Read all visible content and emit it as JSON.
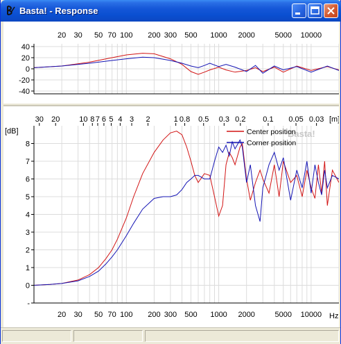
{
  "window": {
    "title": "Basta! - Response"
  },
  "top_chart": {
    "x_ticks": [
      "20",
      "30",
      "50",
      "70",
      "100",
      "200",
      "300",
      "500",
      "1000",
      "2000",
      "5000",
      "10000"
    ],
    "y_ticks": [
      "40",
      "20",
      "0",
      "-20",
      "-40"
    ],
    "ylim": [
      -45,
      45
    ]
  },
  "bottom_chart": {
    "y_unit": "[dB]",
    "x_unit": "Hz",
    "top_unit": "[m]",
    "watermark": "Basta!",
    "x_ticks": [
      "20",
      "30",
      "50",
      "70",
      "100",
      "200",
      "300",
      "500",
      "1000",
      "2000",
      "5000",
      "10000"
    ],
    "top_ticks": [
      "30",
      "20",
      "10",
      "8",
      "7",
      "6",
      "5",
      "4",
      "3",
      "2",
      "1",
      "0.8",
      "0.5",
      "0.3",
      "0.2",
      "0.1",
      "0.05",
      "0.03"
    ],
    "y_ticks": [
      "8",
      "7",
      "6",
      "5",
      "4",
      "3",
      "2",
      "1",
      "0",
      "-"
    ],
    "legend": [
      {
        "label": "Center position",
        "color": "#d21414"
      },
      {
        "label": "Corner position",
        "color": "#1414b4"
      }
    ]
  },
  "chart_data": [
    {
      "type": "line",
      "x_scale": "log",
      "xlim": [
        10,
        20000
      ],
      "ylim": [
        -45,
        45
      ],
      "series": [
        {
          "color": "#d21414",
          "x": [
            10,
            20,
            40,
            70,
            100,
            150,
            200,
            300,
            400,
            500,
            600,
            700,
            800,
            1000,
            1200,
            1500,
            2000,
            2500,
            3000,
            4000,
            5000,
            7000,
            10000,
            15000,
            20000
          ],
          "y": [
            2,
            5,
            12,
            20,
            25,
            28,
            27,
            18,
            8,
            -5,
            -10,
            -6,
            -2,
            3,
            -2,
            -6,
            -3,
            2,
            -5,
            3,
            -6,
            5,
            -3,
            4,
            -2
          ]
        },
        {
          "color": "#1414b4",
          "x": [
            10,
            20,
            40,
            70,
            100,
            150,
            200,
            300,
            400,
            500,
            600,
            700,
            800,
            1000,
            1200,
            1500,
            2000,
            2500,
            3000,
            4000,
            5000,
            7000,
            10000,
            15000,
            20000
          ],
          "y": [
            2,
            5,
            10,
            15,
            18,
            21,
            20,
            15,
            10,
            5,
            2,
            6,
            10,
            4,
            8,
            3,
            -5,
            6,
            -8,
            5,
            -2,
            4,
            -6,
            5,
            -3
          ]
        }
      ]
    },
    {
      "type": "line",
      "x_scale": "log",
      "xlim": [
        10,
        20000
      ],
      "ylim": [
        -1,
        9
      ],
      "series": [
        {
          "name": "Center position",
          "color": "#d21414",
          "x": [
            10,
            15,
            20,
            30,
            40,
            50,
            60,
            70,
            80,
            100,
            120,
            150,
            200,
            250,
            300,
            350,
            400,
            450,
            500,
            550,
            600,
            700,
            800,
            900,
            1000,
            1100,
            1200,
            1300,
            1400,
            1500,
            1700,
            1800,
            2000,
            2200,
            2500,
            2800,
            3000,
            3500,
            4000,
            4500,
            5000,
            6000,
            7000,
            8000,
            9000,
            10000,
            11000,
            12000,
            13000,
            14000,
            15000,
            17000,
            20000
          ],
          "y": [
            0,
            0.05,
            0.1,
            0.3,
            0.6,
            1,
            1.5,
            2,
            2.6,
            3.8,
            5,
            6.3,
            7.5,
            8.2,
            8.6,
            8.7,
            8.5,
            7.8,
            7,
            6.2,
            5.8,
            6.3,
            6.2,
            5,
            3.9,
            4.5,
            6.8,
            7.5,
            7.2,
            6.8,
            7.8,
            8,
            6,
            4.8,
            5.8,
            6.5,
            6,
            5.2,
            6.8,
            5,
            7,
            5.8,
            6.2,
            5,
            6.5,
            5.5,
            4.9,
            6.8,
            5.2,
            7,
            4.5,
            6.5,
            5.8
          ]
        },
        {
          "name": "Corner position",
          "color": "#1414b4",
          "x": [
            10,
            15,
            20,
            30,
            40,
            50,
            60,
            70,
            80,
            100,
            120,
            150,
            200,
            250,
            300,
            350,
            400,
            450,
            500,
            550,
            600,
            700,
            800,
            900,
            1000,
            1100,
            1200,
            1300,
            1400,
            1500,
            1700,
            1800,
            2000,
            2200,
            2500,
            2800,
            3000,
            3500,
            4000,
            4500,
            5000,
            6000,
            7000,
            8000,
            9000,
            10000,
            11000,
            12000,
            13000,
            14000,
            15000,
            17000,
            20000
          ],
          "y": [
            0,
            0.05,
            0.1,
            0.25,
            0.5,
            0.8,
            1.2,
            1.6,
            2,
            2.8,
            3.5,
            4.3,
            4.9,
            5,
            5,
            5.1,
            5.4,
            5.8,
            6,
            6.2,
            6.2,
            6,
            6,
            7,
            7.8,
            7.5,
            7.9,
            7.3,
            8.1,
            7.7,
            8.2,
            7.8,
            5.8,
            6.8,
            4.5,
            3.6,
            5.5,
            6.8,
            7.5,
            6.5,
            7.2,
            4.8,
            6.5,
            5.5,
            7,
            5.2,
            6.8,
            5.8,
            5.1,
            6.5,
            5.5,
            6.2,
            6
          ]
        }
      ]
    }
  ]
}
